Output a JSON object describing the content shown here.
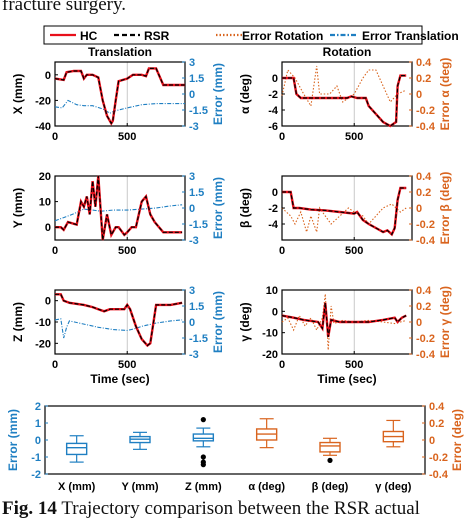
{
  "text_top": "fracture surgery.",
  "caption": {
    "label": "Fig. 14",
    "text": "Trajectory comparison between the RSR actual"
  },
  "legend": {
    "items": [
      {
        "label": "HC",
        "color": "#e8101b",
        "style": "solid"
      },
      {
        "label": "RSR",
        "color": "#000000",
        "style": "dashed"
      },
      {
        "label": "Error Rotation",
        "color": "#d9641e",
        "style": "dotted"
      },
      {
        "label": "Error Translation",
        "color": "#1f7fc2",
        "style": "dashdot"
      }
    ]
  },
  "colors": {
    "hc": "#e8101b",
    "rsr": "#000000",
    "error_translation": "#1f7fc2",
    "error_rotation": "#d9641e"
  },
  "chart_data": [
    {
      "id": "x",
      "type": "line",
      "column_title": "Translation",
      "ylabel": "X (mm)",
      "ylabel2": "Error (mm)",
      "xlabel": "",
      "xlim": [
        0,
        900
      ],
      "xticks": [
        0,
        500
      ],
      "ylim": [
        -40,
        10
      ],
      "yticks": [
        0,
        -20,
        -40
      ],
      "ylim2": [
        -3,
        3
      ],
      "yticks2": [
        "3",
        "1.5",
        "0",
        "-1.5",
        "-3"
      ],
      "hc": [
        [
          0,
          -3
        ],
        [
          60,
          -4
        ],
        [
          80,
          2
        ],
        [
          130,
          3
        ],
        [
          180,
          3
        ],
        [
          200,
          -3
        ],
        [
          220,
          0
        ],
        [
          260,
          0
        ],
        [
          300,
          -2
        ],
        [
          330,
          -20
        ],
        [
          360,
          -32
        ],
        [
          390,
          -38
        ],
        [
          400,
          -36
        ],
        [
          420,
          -20
        ],
        [
          440,
          -5
        ],
        [
          470,
          -4
        ],
        [
          500,
          -3
        ],
        [
          540,
          0
        ],
        [
          600,
          0
        ],
        [
          630,
          -1
        ],
        [
          650,
          5
        ],
        [
          700,
          5
        ],
        [
          750,
          -8
        ],
        [
          800,
          -8
        ],
        [
          860,
          -8
        ],
        [
          900,
          -8
        ]
      ],
      "err": [
        [
          0,
          -1.2
        ],
        [
          50,
          -1.3
        ],
        [
          90,
          -0.6
        ],
        [
          150,
          -1.0
        ],
        [
          200,
          -1.1
        ],
        [
          260,
          -1.1
        ],
        [
          330,
          -1.4
        ],
        [
          380,
          -1.8
        ],
        [
          410,
          -1.6
        ],
        [
          500,
          -1.3
        ],
        [
          600,
          -1.0
        ],
        [
          700,
          -0.9
        ],
        [
          800,
          -0.9
        ],
        [
          900,
          -0.9
        ]
      ]
    },
    {
      "id": "alpha",
      "type": "line",
      "column_title": "Rotation",
      "ylabel": "α (deg)",
      "ylabel2": "Error α (deg)",
      "xlabel": "",
      "xlim": [
        0,
        900
      ],
      "xticks": [
        0,
        500
      ],
      "ylim": [
        -6,
        2
      ],
      "yticks": [
        0,
        -2,
        -4,
        -6
      ],
      "ylim2": [
        -0.4,
        0.4
      ],
      "yticks2": [
        "0.4",
        "0.2",
        "0",
        "-0.2",
        "-0.4"
      ],
      "hc": [
        [
          0,
          0
        ],
        [
          80,
          0
        ],
        [
          100,
          -2
        ],
        [
          130,
          -2.5
        ],
        [
          300,
          -2.5
        ],
        [
          450,
          -2.5
        ],
        [
          480,
          -2.3
        ],
        [
          520,
          -2.5
        ],
        [
          580,
          -2.5
        ],
        [
          600,
          -3.5
        ],
        [
          650,
          -4.5
        ],
        [
          700,
          -5.5
        ],
        [
          750,
          -6
        ],
        [
          790,
          -5.5
        ],
        [
          800,
          -1
        ],
        [
          820,
          0.3
        ],
        [
          860,
          0.3
        ]
      ],
      "err": [
        [
          0,
          -0.02
        ],
        [
          40,
          0.3
        ],
        [
          90,
          0.2
        ],
        [
          150,
          0
        ],
        [
          200,
          -0.15
        ],
        [
          240,
          0.35
        ],
        [
          260,
          0
        ],
        [
          330,
          0
        ],
        [
          380,
          0.1
        ],
        [
          420,
          -0.1
        ],
        [
          500,
          0
        ],
        [
          560,
          0.2
        ],
        [
          600,
          0.3
        ],
        [
          650,
          0.3
        ],
        [
          700,
          0.1
        ],
        [
          750,
          -0.1
        ],
        [
          800,
          0
        ],
        [
          860,
          0.05
        ]
      ]
    },
    {
      "id": "y",
      "type": "line",
      "column_title": "",
      "ylabel": "Y (mm)",
      "ylabel2": "Error (mm)",
      "xlabel": "",
      "xlim": [
        0,
        900
      ],
      "xticks": [
        0,
        500
      ],
      "ylim": [
        -5,
        20
      ],
      "yticks": [
        20,
        10,
        0
      ],
      "ylim2": [
        -3,
        3
      ],
      "yticks2": [
        "3",
        "1.5",
        "0",
        "-1.5",
        "-3"
      ],
      "hc": [
        [
          0,
          0
        ],
        [
          40,
          0
        ],
        [
          60,
          -1
        ],
        [
          90,
          2
        ],
        [
          150,
          1
        ],
        [
          180,
          10
        ],
        [
          200,
          8
        ],
        [
          220,
          12
        ],
        [
          240,
          5
        ],
        [
          260,
          18
        ],
        [
          280,
          8
        ],
        [
          300,
          20
        ],
        [
          330,
          -5
        ],
        [
          360,
          5
        ],
        [
          390,
          -3
        ],
        [
          420,
          0
        ],
        [
          440,
          0
        ],
        [
          480,
          -3
        ],
        [
          500,
          -2
        ],
        [
          530,
          0
        ],
        [
          560,
          0
        ],
        [
          600,
          10
        ],
        [
          630,
          12
        ],
        [
          660,
          5
        ],
        [
          690,
          2
        ],
        [
          750,
          -2
        ],
        [
          800,
          -2
        ],
        [
          880,
          -2
        ]
      ],
      "err": [
        [
          0,
          -1.2
        ],
        [
          60,
          -0.9
        ],
        [
          120,
          -0.6
        ],
        [
          200,
          -0.1
        ],
        [
          260,
          -0.2
        ],
        [
          320,
          -0.3
        ],
        [
          400,
          -0.2
        ],
        [
          500,
          -0.2
        ],
        [
          600,
          -0.1
        ],
        [
          700,
          0
        ],
        [
          800,
          0.2
        ],
        [
          880,
          0.3
        ]
      ]
    },
    {
      "id": "beta",
      "type": "line",
      "column_title": "",
      "ylabel": "β (deg)",
      "ylabel2": "Error β (deg)",
      "xlabel": "",
      "xlim": [
        0,
        900
      ],
      "xticks": [
        0,
        500
      ],
      "ylim": [
        -6,
        2
      ],
      "yticks": [
        0,
        -2,
        -4
      ],
      "ylim2": [
        -0.4,
        0.4
      ],
      "yticks2": [
        "0.4",
        "0.2",
        "0",
        "-0.2",
        "-0.4"
      ],
      "hc": [
        [
          0,
          0
        ],
        [
          60,
          0
        ],
        [
          80,
          -2
        ],
        [
          120,
          -2
        ],
        [
          200,
          -2.2
        ],
        [
          300,
          -2.3
        ],
        [
          400,
          -2.5
        ],
        [
          500,
          -2.7
        ],
        [
          520,
          -2.5
        ],
        [
          560,
          -3.5
        ],
        [
          600,
          -4
        ],
        [
          650,
          -4.5
        ],
        [
          700,
          -5
        ],
        [
          730,
          -4.8
        ],
        [
          760,
          -5.3
        ],
        [
          780,
          -4.5
        ],
        [
          800,
          -1
        ],
        [
          820,
          0.5
        ],
        [
          860,
          0.5
        ]
      ],
      "err": [
        [
          0,
          0
        ],
        [
          60,
          -0.1
        ],
        [
          90,
          -0.2
        ],
        [
          130,
          -0.05
        ],
        [
          170,
          -0.3
        ],
        [
          200,
          -0.1
        ],
        [
          240,
          -0.3
        ],
        [
          260,
          0
        ],
        [
          300,
          -0.1
        ],
        [
          340,
          -0.2
        ],
        [
          400,
          -0.1
        ],
        [
          460,
          0
        ],
        [
          500,
          -0.05
        ],
        [
          560,
          -0.1
        ],
        [
          600,
          -0.2
        ],
        [
          650,
          -0.1
        ],
        [
          700,
          0
        ],
        [
          760,
          0.05
        ],
        [
          820,
          -0.05
        ],
        [
          860,
          0
        ]
      ]
    },
    {
      "id": "z",
      "type": "line",
      "column_title": "",
      "ylabel": "Z (mm)",
      "ylabel2": "Error (mm)",
      "xlabel": "Time (sec)",
      "xlim": [
        0,
        900
      ],
      "xticks": [
        0,
        500
      ],
      "ylim": [
        -25,
        5
      ],
      "yticks": [
        0,
        -10,
        -20
      ],
      "ylim2": [
        -3,
        3
      ],
      "yticks2": [
        "3",
        "1.5",
        "0",
        "-1.5",
        "-3"
      ],
      "hc": [
        [
          0,
          3
        ],
        [
          40,
          3
        ],
        [
          60,
          0
        ],
        [
          100,
          -1
        ],
        [
          200,
          -2
        ],
        [
          260,
          -3
        ],
        [
          300,
          -4
        ],
        [
          340,
          -5
        ],
        [
          380,
          -4
        ],
        [
          420,
          -4
        ],
        [
          480,
          -4
        ],
        [
          500,
          -2
        ],
        [
          520,
          -4
        ],
        [
          560,
          -12
        ],
        [
          600,
          -18
        ],
        [
          640,
          -21
        ],
        [
          660,
          -20
        ],
        [
          700,
          -2
        ],
        [
          760,
          -2
        ],
        [
          800,
          -2
        ],
        [
          880,
          -1
        ]
      ],
      "err": [
        [
          0,
          0.2
        ],
        [
          40,
          0.3
        ],
        [
          60,
          -1.5
        ],
        [
          80,
          -0.5
        ],
        [
          100,
          0.1
        ],
        [
          200,
          -0.2
        ],
        [
          300,
          -0.5
        ],
        [
          400,
          -0.7
        ],
        [
          500,
          -0.8
        ],
        [
          560,
          -0.6
        ],
        [
          600,
          -0.4
        ],
        [
          700,
          -0.1
        ],
        [
          800,
          0.1
        ],
        [
          880,
          0.2
        ]
      ]
    },
    {
      "id": "gamma",
      "type": "line",
      "column_title": "",
      "ylabel": "γ (deg)",
      "ylabel2": "Error γ (deg)",
      "xlabel": "Time (sec)",
      "xlim": [
        0,
        900
      ],
      "xticks": [
        0,
        500
      ],
      "ylim": [
        -20,
        10
      ],
      "yticks": [
        10,
        0,
        -10,
        -20
      ],
      "ylim2": [
        -0.4,
        0.4
      ],
      "yticks2": [
        "0.4",
        "0.2",
        "0",
        "-0.2",
        "-0.4"
      ],
      "hc": [
        [
          0,
          -2
        ],
        [
          80,
          -3
        ],
        [
          150,
          -4
        ],
        [
          250,
          -5
        ],
        [
          280,
          -8
        ],
        [
          300,
          4
        ],
        [
          320,
          -12
        ],
        [
          340,
          -4
        ],
        [
          400,
          -5
        ],
        [
          500,
          -5
        ],
        [
          600,
          -5
        ],
        [
          700,
          -4
        ],
        [
          780,
          -3
        ],
        [
          800,
          -5
        ],
        [
          830,
          -3
        ],
        [
          860,
          -2
        ]
      ],
      "err": [
        [
          0,
          0
        ],
        [
          40,
          0.05
        ],
        [
          80,
          -0.1
        ],
        [
          120,
          0.08
        ],
        [
          160,
          -0.05
        ],
        [
          200,
          0.05
        ],
        [
          240,
          -0.1
        ],
        [
          280,
          0.05
        ],
        [
          300,
          0.35
        ],
        [
          320,
          -0.35
        ],
        [
          340,
          0.2
        ],
        [
          360,
          -0.02
        ],
        [
          420,
          0.02
        ],
        [
          500,
          0
        ],
        [
          600,
          0.02
        ],
        [
          700,
          0
        ],
        [
          780,
          -0.02
        ],
        [
          860,
          0.02
        ]
      ]
    },
    {
      "id": "box",
      "type": "box",
      "categories": [
        "X (mm)",
        "Y (mm)",
        "Z (mm)",
        "α (deg)",
        "β (deg)",
        "γ (deg)"
      ],
      "axis": [
        "left",
        "left",
        "left",
        "right",
        "right",
        "right"
      ],
      "ylabel": "Error (mm)",
      "ylim": [
        -2,
        2
      ],
      "yticks": [
        2,
        1,
        0,
        -1,
        -2
      ],
      "ylabel2": "Error (deg)",
      "ylim2": [
        -0.4,
        0.4
      ],
      "yticks2": [
        "0.4",
        "0.2",
        "0",
        "-0.2",
        "-0.4"
      ],
      "boxes": [
        {
          "min": -1.3,
          "q1": -0.85,
          "median": -0.45,
          "q3": -0.2,
          "max": 0.25,
          "outliers": []
        },
        {
          "min": -0.55,
          "q1": -0.15,
          "median": 0.05,
          "q3": 0.2,
          "max": 0.45,
          "outliers": []
        },
        {
          "min": -0.4,
          "q1": -0.05,
          "median": 0.1,
          "q3": 0.35,
          "max": 0.7,
          "outliers": [
            1.2,
            -1.0,
            -1.3,
            -1.45
          ]
        },
        {
          "min": -0.09,
          "q1": 0.0,
          "median": 0.07,
          "q3": 0.13,
          "max": 0.25,
          "outliers": []
        },
        {
          "min": -0.18,
          "q1": -0.14,
          "median": -0.07,
          "q3": -0.03,
          "max": 0.02,
          "outliers": [
            -0.24
          ]
        },
        {
          "min": -0.08,
          "q1": -0.02,
          "median": 0.04,
          "q3": 0.1,
          "max": 0.23,
          "outliers": []
        }
      ]
    }
  ]
}
